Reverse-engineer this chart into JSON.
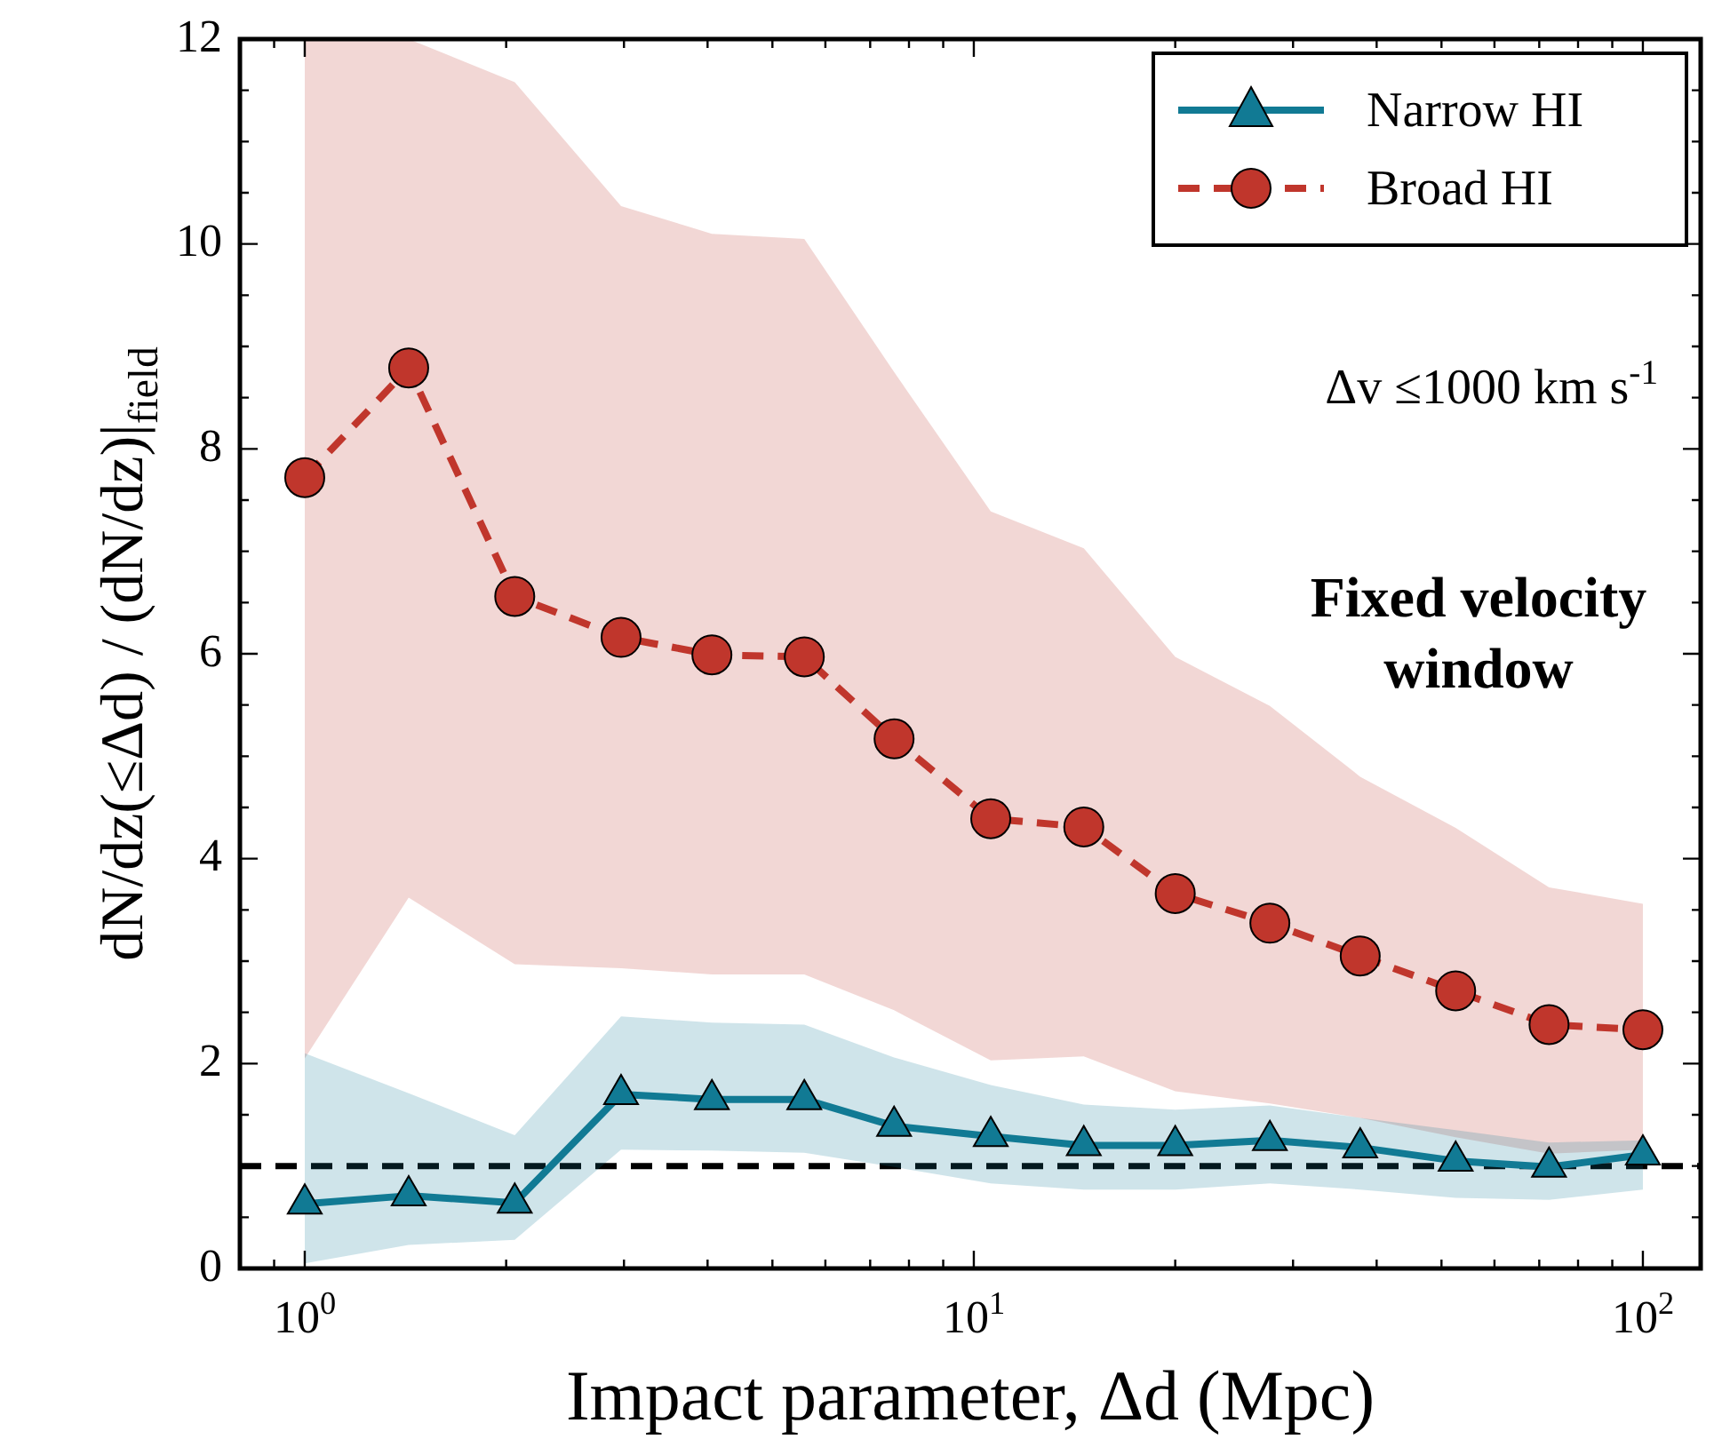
{
  "chart_data": {
    "type": "line",
    "xlabel": "Impact parameter, Δd (Mpc)",
    "ylabel": "dN/dz(≤Δd) / (dN/dz)|$_{field}$",
    "log": "x",
    "xlim": [
      0.8,
      122
    ],
    "ylim": [
      0,
      12
    ],
    "xticks": [
      {
        "value": 0.9,
        "label": null
      },
      {
        "value": 1,
        "label": "10$^{0}$"
      },
      {
        "value": 2,
        "label": null
      },
      {
        "value": 3,
        "label": null
      },
      {
        "value": 4,
        "label": null
      },
      {
        "value": 5,
        "label": null
      },
      {
        "value": 6,
        "label": null
      },
      {
        "value": 7,
        "label": null
      },
      {
        "value": 8,
        "label": null
      },
      {
        "value": 9,
        "label": null
      },
      {
        "value": 10,
        "label": "10$^{1}$"
      },
      {
        "value": 20,
        "label": null
      },
      {
        "value": 30,
        "label": null
      },
      {
        "value": 40,
        "label": null
      },
      {
        "value": 50,
        "label": null
      },
      {
        "value": 60,
        "label": null
      },
      {
        "value": 70,
        "label": null
      },
      {
        "value": 80,
        "label": null
      },
      {
        "value": 90,
        "label": null
      },
      {
        "value": 100,
        "label": "10$^{2}$"
      }
    ],
    "yticks": [
      0,
      {
        "value": 0.5,
        "label": null
      },
      {
        "value": 1,
        "label": null
      },
      {
        "value": 1.5,
        "label": null
      },
      2,
      {
        "value": 2.5,
        "label": null
      },
      {
        "value": 3,
        "label": null
      },
      {
        "value": 3.5,
        "label": null
      },
      4,
      {
        "value": 4.5,
        "label": null
      },
      {
        "value": 5,
        "label": null
      },
      {
        "value": 5.5,
        "label": null
      },
      6,
      {
        "value": 6.5,
        "label": null
      },
      {
        "value": 7,
        "label": null
      },
      {
        "value": 7.5,
        "label": null
      },
      8,
      {
        "value": 8.5,
        "label": null
      },
      {
        "value": 9,
        "label": null
      },
      {
        "value": 9.5,
        "label": null
      },
      10,
      {
        "value": 10.5,
        "label": null
      },
      {
        "value": 11,
        "label": null
      },
      {
        "value": 11.5,
        "label": null
      },
      12
    ],
    "x": [
      1,
      1.43,
      2.06,
      2.97,
      4.06,
      5.58,
      7.6,
      10.6,
      14.6,
      20,
      27.7,
      37.8,
      52.5,
      72.4,
      100
    ],
    "series": [
      {
        "name": "Narrow HI",
        "color": "#117a94",
        "marker": "triangle",
        "line_style": "solid",
        "values": [
          0.63,
          0.71,
          0.64,
          1.7,
          1.65,
          1.65,
          1.39,
          1.29,
          1.2,
          1.2,
          1.25,
          1.18,
          1.05,
          0.99,
          1.11
        ],
        "lower": [
          0.05,
          0.23,
          0.28,
          1.16,
          1.15,
          1.13,
          0.99,
          0.83,
          0.77,
          0.77,
          0.83,
          0.77,
          0.69,
          0.67,
          0.77
        ],
        "upper": [
          2.1,
          1.71,
          1.3,
          2.46,
          2.4,
          2.38,
          2.06,
          1.79,
          1.6,
          1.55,
          1.59,
          1.47,
          1.35,
          1.23,
          1.25
        ]
      },
      {
        "name": "Broad HI",
        "color": "#c0362c",
        "marker": "circle",
        "line_style": "dashed",
        "values": [
          7.72,
          8.79,
          6.56,
          6.16,
          5.99,
          5.97,
          5.17,
          4.39,
          4.31,
          3.66,
          3.37,
          3.05,
          2.71,
          2.38,
          2.33
        ],
        "lower": [
          2.05,
          3.62,
          2.97,
          2.93,
          2.87,
          2.87,
          2.52,
          2.03,
          2.07,
          1.73,
          1.61,
          1.47,
          1.28,
          1.12,
          1.16
        ],
        "upper": [
          12,
          12,
          11.58,
          10.37,
          10.1,
          10.05,
          8.75,
          7.39,
          7.03,
          5.97,
          5.49,
          4.8,
          4.3,
          3.72,
          3.56
        ]
      }
    ],
    "ref_lines": [
      {
        "axis": "y",
        "value": 1,
        "color": "#000000",
        "line_style": "dashed"
      }
    ],
    "legend": "top right",
    "annotations": [
      "Δv ≤1000 km s$^{-1}$",
      "Fixed velocity window"
    ]
  }
}
